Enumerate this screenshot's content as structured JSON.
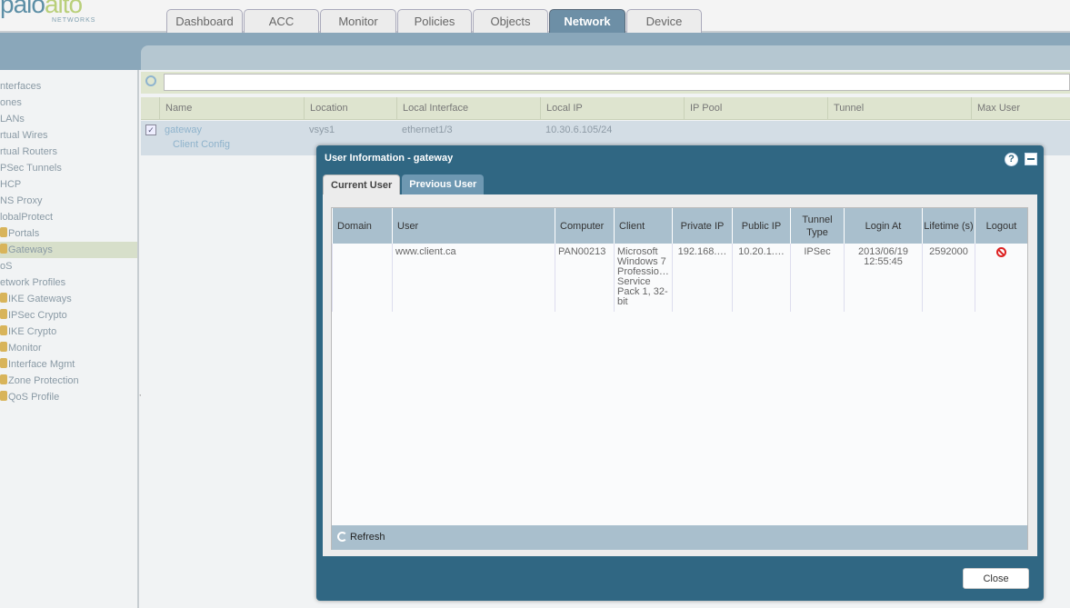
{
  "header": {
    "logo_main_1": "palo",
    "logo_main_2": "alto",
    "logo_sub": "NETWORKS",
    "tabs": [
      {
        "label": "Dashboard"
      },
      {
        "label": "ACC"
      },
      {
        "label": "Monitor"
      },
      {
        "label": "Policies"
      },
      {
        "label": "Objects"
      },
      {
        "label": "Network",
        "active": true
      },
      {
        "label": "Device"
      }
    ]
  },
  "sidebar": {
    "items": [
      {
        "label": "nterfaces"
      },
      {
        "label": "ones"
      },
      {
        "label": "LANs"
      },
      {
        "label": "rtual Wires"
      },
      {
        "label": "rtual Routers"
      },
      {
        "label": "PSec Tunnels"
      },
      {
        "label": "HCP"
      },
      {
        "label": "NS Proxy"
      },
      {
        "label": "lobalProtect"
      },
      {
        "label": "Portals",
        "icon": "portal-icon"
      },
      {
        "label": "Gateways",
        "icon": "gateway-icon",
        "selected": true
      },
      {
        "label": "oS"
      },
      {
        "label": "etwork Profiles"
      },
      {
        "label": "IKE Gateways",
        "icon": "ike-gateway-icon"
      },
      {
        "label": "IPSec Crypto",
        "icon": "lock-icon"
      },
      {
        "label": "IKE Crypto",
        "icon": "lock-icon"
      },
      {
        "label": "Monitor",
        "icon": "monitor-icon"
      },
      {
        "label": "Interface Mgmt",
        "icon": "gear-icon"
      },
      {
        "label": "Zone Protection",
        "icon": "shield-icon"
      },
      {
        "label": "QoS Profile",
        "icon": "qos-icon"
      }
    ]
  },
  "grid": {
    "columns": [
      "Name",
      "Location",
      "Local Interface",
      "Local IP",
      "IP Pool",
      "Tunnel",
      "Max User"
    ],
    "row": {
      "checked": true,
      "name": "gateway",
      "sub": "Client Config",
      "location": "vsys1",
      "local_interface": "ethernet1/3",
      "local_ip": "10.30.6.105/24"
    }
  },
  "dialog": {
    "title": "User Information - gateway",
    "tabs": [
      "Current User",
      "Previous User"
    ],
    "columns": [
      "Domain",
      "User",
      "Computer",
      "Client",
      "Private IP",
      "Public IP",
      "Tunnel Type",
      "Login At",
      "Lifetime (s)",
      "Logout"
    ],
    "rows": [
      {
        "domain": "",
        "user": "www.client.ca",
        "computer": "PAN00213",
        "client": "Microsoft Windows 7 Professio… Service Pack 1, 32-bit",
        "private_ip": "192.168.…",
        "public_ip": "10.20.1.…",
        "tunnel_type": "IPSec",
        "login_at": "2013/06/19 12:55:45",
        "lifetime": "2592000",
        "logout_icon": "logout-icon"
      }
    ],
    "refresh_label": "Refresh",
    "close_label": "Close",
    "help_icon_label": "?"
  },
  "colors": {
    "dialog": "#306783",
    "header_band": "#8aa7ba",
    "active_tab": "#6d8fa6",
    "selection": "#d7dfca",
    "table_header": "#a9bfcd",
    "logout": "#dd2222"
  }
}
